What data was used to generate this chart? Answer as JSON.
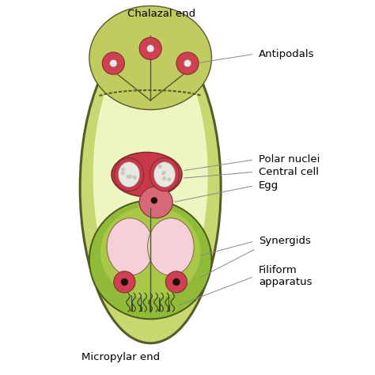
{
  "bg_color": "#ffffff",
  "outer_sac_color": "#c8d870",
  "outer_sac_edge_color": "#5a5a28",
  "inner_sac_fill": "#edf5c0",
  "chalazal_fill": "#c0cc60",
  "chalazal_edge": "#5a5a28",
  "micropylar_fill": "#90bb38",
  "micropylar_edge": "#4a5a20",
  "synergid_fill": "#b8d850",
  "synergid_vacuole": "#f5d0d8",
  "synergid_nucleus_fill": "#d04055",
  "synergid_nucleus_dot": "#201008",
  "central_cell_fill": "#c83848",
  "polar_nucleus_fill": "#e8e8e0",
  "polar_nucleus_edge": "#704040",
  "egg_fill": "#d86878",
  "egg_dot": "#201008",
  "antipodal_fill": "#d04050",
  "antipodal_dot": "#e8e8e8",
  "filiform_color": "#404828",
  "line_color": "#888888",
  "label_color": "#000000",
  "label_fs": 9.5,
  "labels": {
    "chalazal_end": "Chalazal end",
    "antipodals": "Antipodals",
    "polar_nuclei": "Polar nuclei",
    "central_cell": "Central cell",
    "egg": "Egg",
    "synergids": "Synergids",
    "filiform_apparatus": "Filiform\napparatus",
    "micropylar_end": "Micropylar end"
  }
}
